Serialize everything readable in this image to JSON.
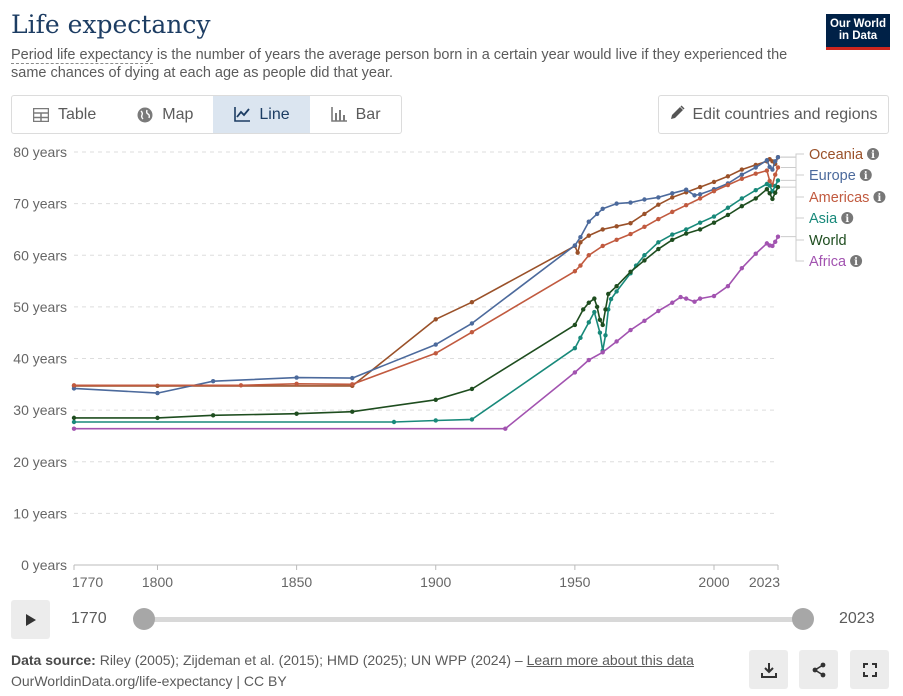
{
  "header": {
    "title": "Life expectancy",
    "subtitle_link": "Period life expectancy",
    "subtitle_rest": " is the number of years the average person born in a certain year would live if they experienced the same chances of dying at each age as people did that year.",
    "logo_line1": "Our World",
    "logo_line2": "in Data"
  },
  "tabs": [
    {
      "label": "Table",
      "icon": "table-icon"
    },
    {
      "label": "Map",
      "icon": "globe-icon"
    },
    {
      "label": "Line",
      "icon": "line-chart-icon"
    },
    {
      "label": "Bar",
      "icon": "bar-chart-icon"
    }
  ],
  "edit_button": "Edit countries and regions",
  "timeline": {
    "start": "1770",
    "end": "2023"
  },
  "footer": {
    "source_label": "Data source:",
    "source_text": " Riley (2005); Zijdeman et al. (2015); HMD (2025); UN WPP (2024) – ",
    "learn_more": "Learn more about this data",
    "url": "OurWorldinData.org/life-expectancy | CC BY"
  },
  "colors": {
    "Oceania": "#9a5129",
    "Europe": "#4c6a9c",
    "Americas": "#c15a3f",
    "Asia": "#18897a",
    "World": "#1e4d1f",
    "Africa": "#a253b0",
    "grid": "#dddddd",
    "axis_text": "#666666"
  },
  "chart_data": {
    "type": "line",
    "title": "Life expectancy",
    "xlim": [
      1770,
      2023
    ],
    "ylim": [
      0,
      80
    ],
    "x_ticks": [
      1770,
      1800,
      1850,
      1900,
      1950,
      2000,
      2023
    ],
    "y_ticks": [
      {
        "value": 0,
        "label": "0 years"
      },
      {
        "value": 10,
        "label": "10 years"
      },
      {
        "value": 20,
        "label": "20 years"
      },
      {
        "value": 30,
        "label": "30 years"
      },
      {
        "value": 40,
        "label": "40 years"
      },
      {
        "value": 50,
        "label": "50 years"
      },
      {
        "value": 60,
        "label": "60 years"
      },
      {
        "value": 70,
        "label": "70 years"
      },
      {
        "value": 80,
        "label": "80 years"
      }
    ],
    "legend_position": "right",
    "series": [
      {
        "name": "Oceania",
        "info": true,
        "points": [
          [
            1770,
            34.7
          ],
          [
            1800,
            34.7
          ],
          [
            1870,
            34.7
          ],
          [
            1900,
            47.6
          ],
          [
            1913,
            50.9
          ],
          [
            1950,
            61.8
          ],
          [
            1951,
            60.5
          ],
          [
            1952,
            62.5
          ],
          [
            1955,
            63.8
          ],
          [
            1960,
            65.0
          ],
          [
            1965,
            65.6
          ],
          [
            1970,
            66.2
          ],
          [
            1975,
            68.0
          ],
          [
            1980,
            69.8
          ],
          [
            1985,
            71.2
          ],
          [
            1990,
            72.2
          ],
          [
            1995,
            73.2
          ],
          [
            2000,
            74.2
          ],
          [
            2005,
            75.3
          ],
          [
            2010,
            76.6
          ],
          [
            2015,
            77.5
          ],
          [
            2019,
            78.2
          ],
          [
            2020,
            78.6
          ],
          [
            2021,
            78.2
          ],
          [
            2022,
            77.7
          ],
          [
            2023,
            79.0
          ]
        ]
      },
      {
        "name": "Europe",
        "info": true,
        "points": [
          [
            1770,
            34.2
          ],
          [
            1800,
            33.3
          ],
          [
            1820,
            35.6
          ],
          [
            1850,
            36.3
          ],
          [
            1870,
            36.2
          ],
          [
            1900,
            42.7
          ],
          [
            1913,
            46.8
          ],
          [
            1950,
            61.9
          ],
          [
            1952,
            63.5
          ],
          [
            1955,
            66.5
          ],
          [
            1958,
            68.0
          ],
          [
            1960,
            69.0
          ],
          [
            1965,
            70.0
          ],
          [
            1970,
            70.2
          ],
          [
            1975,
            70.8
          ],
          [
            1980,
            71.2
          ],
          [
            1985,
            72.0
          ],
          [
            1990,
            72.7
          ],
          [
            1993,
            71.6
          ],
          [
            1995,
            71.8
          ],
          [
            2000,
            72.8
          ],
          [
            2005,
            73.9
          ],
          [
            2010,
            75.6
          ],
          [
            2015,
            77.0
          ],
          [
            2019,
            78.4
          ],
          [
            2020,
            77.1
          ],
          [
            2021,
            76.6
          ],
          [
            2022,
            78.2
          ],
          [
            2023,
            79.0
          ]
        ]
      },
      {
        "name": "Americas",
        "info": true,
        "points": [
          [
            1770,
            34.8
          ],
          [
            1830,
            34.8
          ],
          [
            1850,
            35.1
          ],
          [
            1870,
            35.0
          ],
          [
            1900,
            41.0
          ],
          [
            1913,
            45.1
          ],
          [
            1950,
            56.9
          ],
          [
            1952,
            58.0
          ],
          [
            1955,
            60.0
          ],
          [
            1960,
            61.8
          ],
          [
            1965,
            63.0
          ],
          [
            1970,
            64.1
          ],
          [
            1975,
            65.5
          ],
          [
            1980,
            67.0
          ],
          [
            1985,
            68.4
          ],
          [
            1990,
            69.7
          ],
          [
            1995,
            71.0
          ],
          [
            2000,
            72.4
          ],
          [
            2005,
            73.6
          ],
          [
            2010,
            74.8
          ],
          [
            2015,
            75.8
          ],
          [
            2019,
            76.4
          ],
          [
            2020,
            74.4
          ],
          [
            2021,
            73.6
          ],
          [
            2022,
            75.6
          ],
          [
            2023,
            77.0
          ]
        ]
      },
      {
        "name": "Asia",
        "info": true,
        "points": [
          [
            1770,
            27.7
          ],
          [
            1885,
            27.7
          ],
          [
            1900,
            28.0
          ],
          [
            1913,
            28.2
          ],
          [
            1950,
            42.0
          ],
          [
            1952,
            44.0
          ],
          [
            1955,
            47.0
          ],
          [
            1957,
            49.0
          ],
          [
            1959,
            45.0
          ],
          [
            1960,
            41.5
          ],
          [
            1961,
            44.5
          ],
          [
            1962,
            49.5
          ],
          [
            1963,
            51.5
          ],
          [
            1965,
            53.0
          ],
          [
            1970,
            56.5
          ],
          [
            1972,
            58.0
          ],
          [
            1975,
            60.0
          ],
          [
            1980,
            62.5
          ],
          [
            1985,
            64.0
          ],
          [
            1990,
            65.0
          ],
          [
            1995,
            66.3
          ],
          [
            2000,
            67.5
          ],
          [
            2005,
            69.2
          ],
          [
            2010,
            71.0
          ],
          [
            2015,
            72.6
          ],
          [
            2019,
            73.8
          ],
          [
            2020,
            73.5
          ],
          [
            2021,
            72.4
          ],
          [
            2022,
            73.4
          ],
          [
            2023,
            74.5
          ]
        ]
      },
      {
        "name": "World",
        "info": false,
        "points": [
          [
            1770,
            28.5
          ],
          [
            1800,
            28.5
          ],
          [
            1820,
            29.0
          ],
          [
            1850,
            29.3
          ],
          [
            1870,
            29.7
          ],
          [
            1900,
            32.0
          ],
          [
            1913,
            34.1
          ],
          [
            1950,
            46.5
          ],
          [
            1953,
            49.5
          ],
          [
            1955,
            50.8
          ],
          [
            1957,
            51.6
          ],
          [
            1958,
            50.0
          ],
          [
            1959,
            47.5
          ],
          [
            1960,
            46.5
          ],
          [
            1961,
            49.5
          ],
          [
            1962,
            52.5
          ],
          [
            1965,
            54.0
          ],
          [
            1970,
            56.8
          ],
          [
            1975,
            59.0
          ],
          [
            1980,
            61.2
          ],
          [
            1985,
            63.0
          ],
          [
            1990,
            64.2
          ],
          [
            1995,
            65.0
          ],
          [
            2000,
            66.3
          ],
          [
            2005,
            67.8
          ],
          [
            2010,
            69.5
          ],
          [
            2015,
            71.0
          ],
          [
            2019,
            72.8
          ],
          [
            2020,
            72.0
          ],
          [
            2021,
            70.9
          ],
          [
            2022,
            72.1
          ],
          [
            2023,
            73.2
          ]
        ]
      },
      {
        "name": "Africa",
        "info": true,
        "points": [
          [
            1770,
            26.4
          ],
          [
            1925,
            26.4
          ],
          [
            1950,
            37.3
          ],
          [
            1955,
            39.7
          ],
          [
            1960,
            41.2
          ],
          [
            1965,
            43.3
          ],
          [
            1970,
            45.5
          ],
          [
            1975,
            47.3
          ],
          [
            1980,
            49.2
          ],
          [
            1985,
            50.8
          ],
          [
            1988,
            51.9
          ],
          [
            1990,
            51.6
          ],
          [
            1993,
            51.0
          ],
          [
            1995,
            51.6
          ],
          [
            2000,
            52.1
          ],
          [
            2005,
            54.0
          ],
          [
            2010,
            57.5
          ],
          [
            2015,
            60.3
          ],
          [
            2019,
            62.3
          ],
          [
            2020,
            61.9
          ],
          [
            2021,
            61.8
          ],
          [
            2022,
            62.6
          ],
          [
            2023,
            63.6
          ]
        ]
      }
    ]
  }
}
